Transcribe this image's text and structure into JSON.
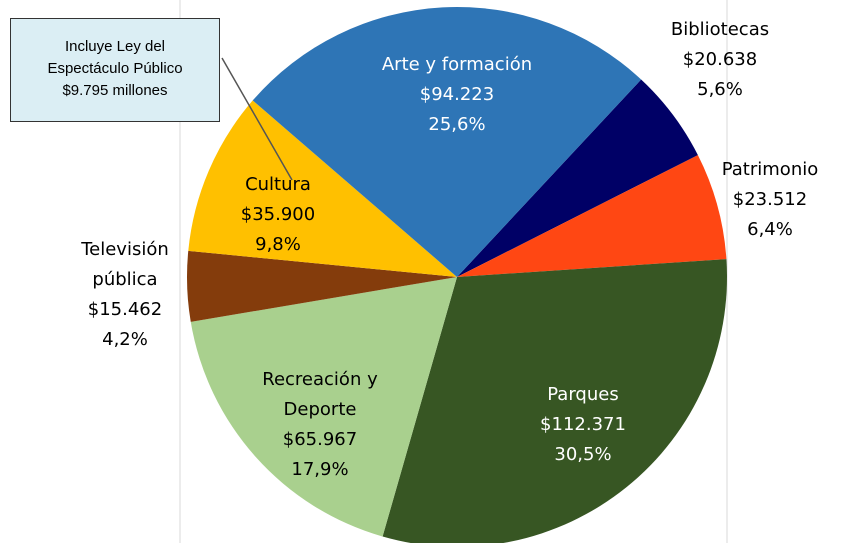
{
  "chart_data": {
    "type": "pie",
    "categories": [
      "Bibliotecas",
      "Patrimonio",
      "Parques",
      "Recreación y Deporte",
      "Televisión pública",
      "Cultura",
      "Arte y formación"
    ],
    "values": [
      5.6,
      6.4,
      30.5,
      17.9,
      4.2,
      9.8,
      25.6
    ],
    "value_labels": [
      "5,6%",
      "6,4%",
      "30,5%",
      "17,9%",
      "4,2%",
      "9,8%",
      "25,6%"
    ],
    "amount_labels": [
      "$20.638",
      "$23.512",
      "$112.371",
      "$65.967",
      "$15.462",
      "$35.900",
      "$94.223"
    ],
    "colors": [
      "#000066",
      "#ff4713",
      "#375623",
      "#a9d08e",
      "#843c0c",
      "#ffc000",
      "#2e75b6"
    ],
    "annotation": [
      "Incluye Ley del",
      "Espectáculo Público",
      "$9.795 millones"
    ]
  }
}
